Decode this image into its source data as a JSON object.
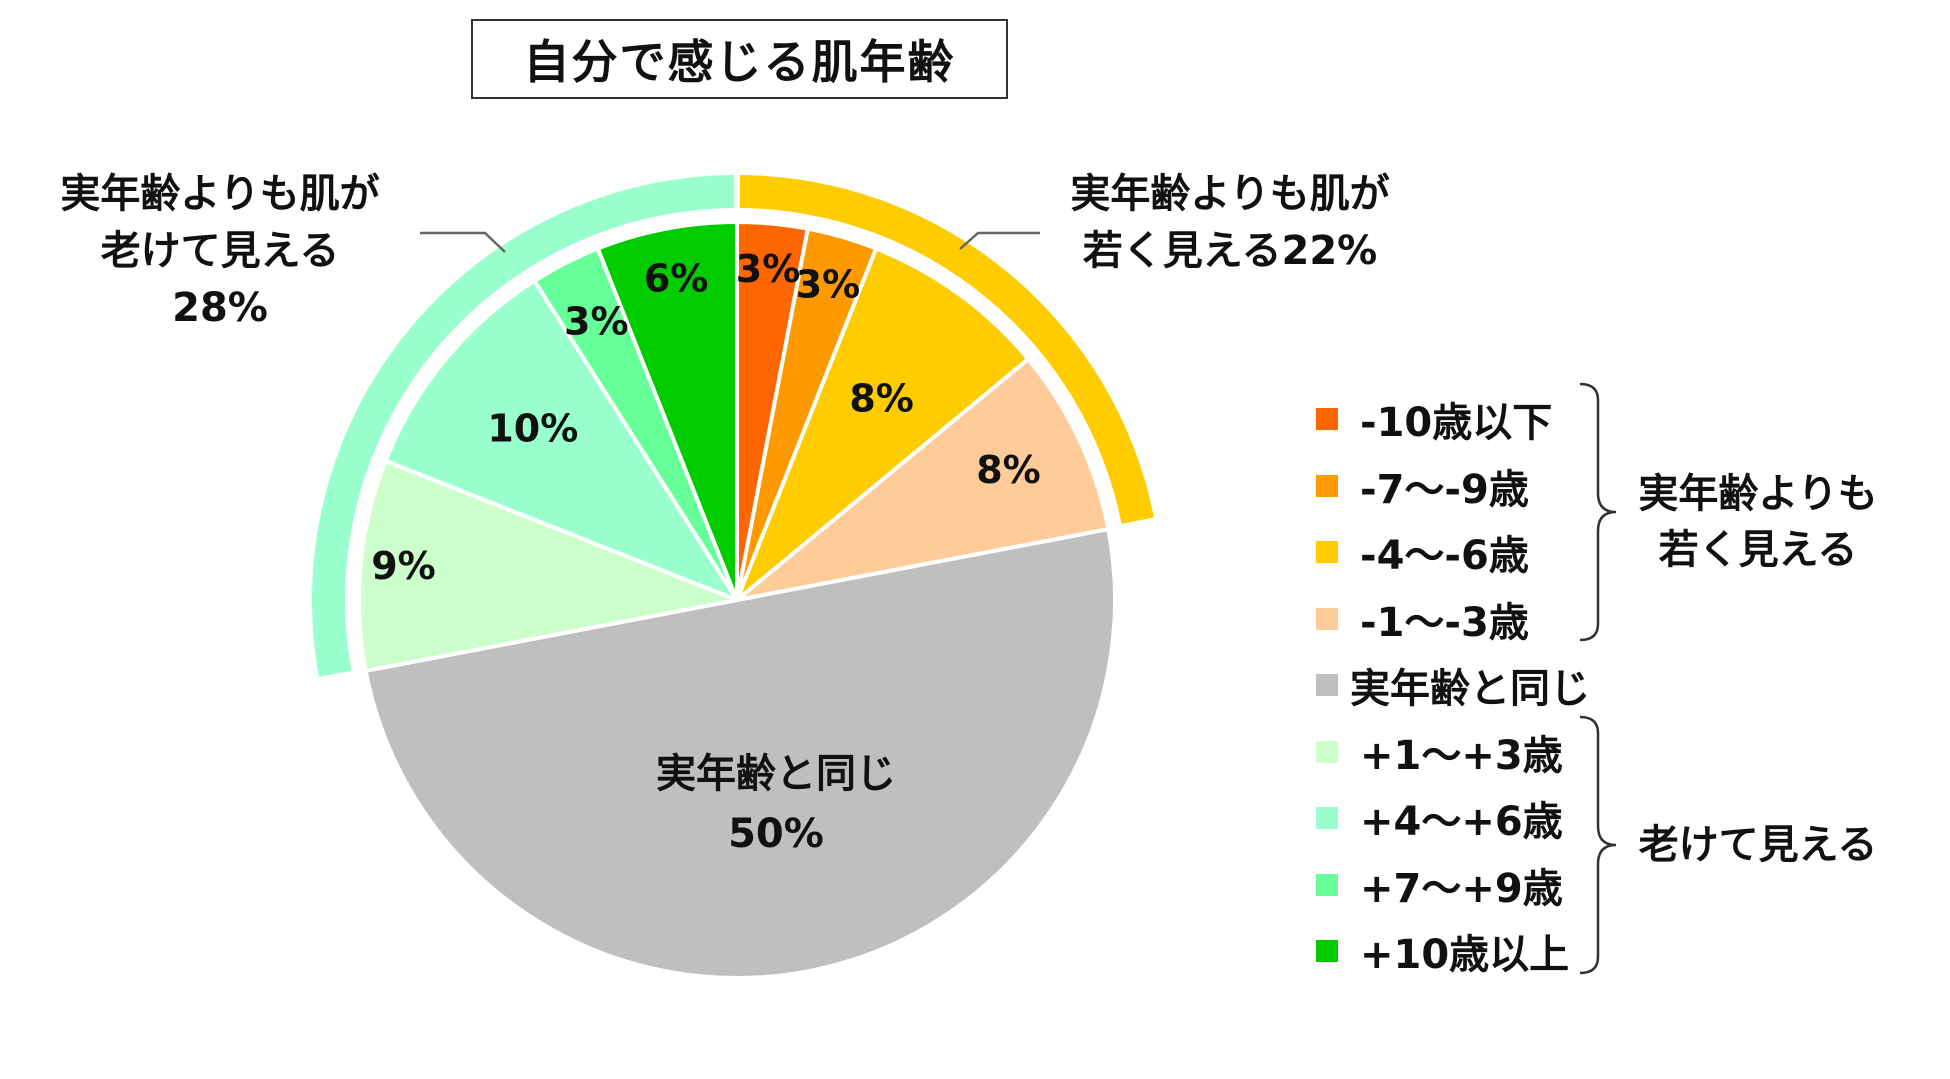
{
  "chart_data": {
    "type": "pie",
    "title": "自分で感じる肌年齢",
    "slices": [
      {
        "label": "-10歳以下",
        "value": 3,
        "value_label": "3%",
        "color": "#ff6600"
      },
      {
        "label": "-7〜-9歳",
        "value": 3,
        "value_label": "3%",
        "color": "#ff9900"
      },
      {
        "label": "-4〜-6歳",
        "value": 8,
        "value_label": "8%",
        "color": "#ffcc00"
      },
      {
        "label": "-1〜-3歳",
        "value": 8,
        "value_label": "8%",
        "color": "#ffcc99"
      },
      {
        "label": "実年齢と同じ",
        "value": 50,
        "value_label": "50%",
        "slice_text": [
          "実年齢と同じ",
          "50%"
        ],
        "color": "#bfbfbf"
      },
      {
        "label": "+1〜+3歳",
        "value": 9,
        "value_label": "9%",
        "color": "#ccffcc"
      },
      {
        "label": "+4〜+6歳",
        "value": 10,
        "value_label": "10%",
        "color": "#99ffcc"
      },
      {
        "label": "+7〜+9歳",
        "value": 3,
        "value_label": "3%",
        "color": "#66ff99"
      },
      {
        "label": "+10歳以上",
        "value": 6,
        "value_label": "6%",
        "color": "#00cc00"
      }
    ],
    "groups": [
      {
        "name": "実年齢よりも若く見える",
        "legend_label": [
          "実年齢よりも",
          "若く見える"
        ],
        "annotation": [
          "実年齢よりも肌が",
          "若く見える22%"
        ],
        "value": 22,
        "color": "#ffcc00"
      },
      {
        "name": "老けて見える",
        "legend_label": [
          "老けて見える"
        ],
        "annotation": [
          "実年齢よりも肌が",
          "老けて見える",
          "28%"
        ],
        "value": 28,
        "color": "#99ffcc"
      }
    ],
    "legend_position": "right"
  }
}
